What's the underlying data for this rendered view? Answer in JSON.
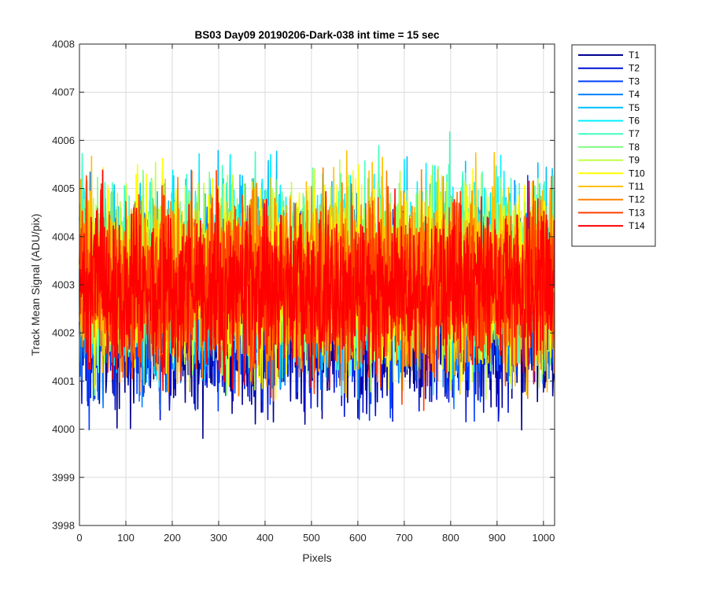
{
  "chart_data": {
    "type": "line",
    "title": "BS03 Day09 20190206-Dark-038 int time = 15 sec",
    "xlabel": "Pixels",
    "ylabel": "Track Mean Signal (ADU/pix)",
    "xlim": [
      0,
      1024
    ],
    "ylim": [
      3998,
      4008
    ],
    "xticks": [
      "0",
      "100",
      "200",
      "300",
      "400",
      "500",
      "600",
      "700",
      "800",
      "900",
      "1000"
    ],
    "yticks": [
      "3998",
      "3999",
      "4000",
      "4001",
      "4002",
      "4003",
      "4004",
      "4005",
      "4006",
      "4007",
      "4008"
    ],
    "grid": true,
    "legend_position": "outside-top-right",
    "n_points": 1024,
    "series": [
      {
        "name": "T1",
        "color": "#00008f",
        "mean": 4002.2,
        "spread": 0.85
      },
      {
        "name": "T2",
        "color": "#0010d6",
        "mean": 4002.3,
        "spread": 0.85
      },
      {
        "name": "T3",
        "color": "#0040ff",
        "mean": 4002.5,
        "spread": 0.85
      },
      {
        "name": "T4",
        "color": "#0080ff",
        "mean": 4002.8,
        "spread": 0.9
      },
      {
        "name": "T5",
        "color": "#00bfff",
        "mean": 4003.2,
        "spread": 0.9
      },
      {
        "name": "T6",
        "color": "#00f0ff",
        "mean": 4003.3,
        "spread": 0.9
      },
      {
        "name": "T7",
        "color": "#40ffbf",
        "mean": 4003.3,
        "spread": 0.9
      },
      {
        "name": "T8",
        "color": "#80ff80",
        "mean": 4003.2,
        "spread": 0.9
      },
      {
        "name": "T9",
        "color": "#bfff40",
        "mean": 4003.2,
        "spread": 0.9
      },
      {
        "name": "T10",
        "color": "#ffff00",
        "mean": 4003.1,
        "spread": 0.9
      },
      {
        "name": "T11",
        "color": "#ffbf00",
        "mean": 4003.2,
        "spread": 0.9
      },
      {
        "name": "T12",
        "color": "#ff8000",
        "mean": 4003.0,
        "spread": 0.85
      },
      {
        "name": "T13",
        "color": "#ff4000",
        "mean": 4003.0,
        "spread": 0.85
      },
      {
        "name": "T14",
        "color": "#ff0000",
        "mean": 4002.9,
        "spread": 0.85
      }
    ]
  }
}
